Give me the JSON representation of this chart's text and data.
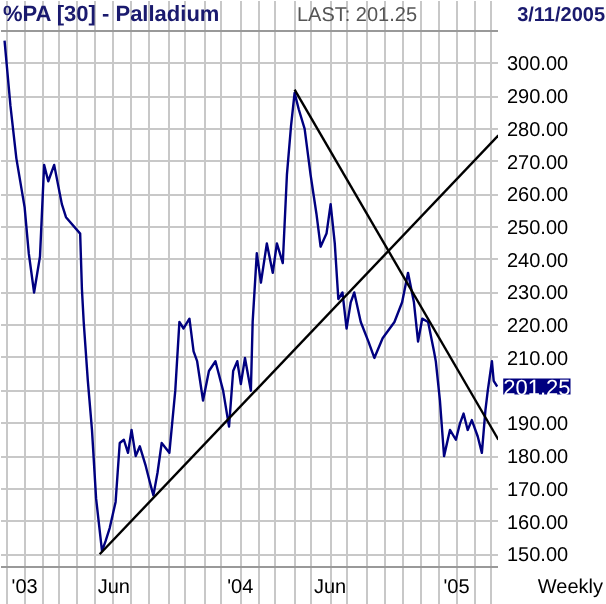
{
  "chart_data": {
    "type": "line",
    "title": "%PA [30] - Palladium",
    "x": [
      "2002-11-28",
      "2002-12-08",
      "2002-12-18",
      "2003-01-01",
      "2003-01-08",
      "2003-01-17",
      "2003-01-27",
      "2003-02-03",
      "2003-02-10",
      "2003-02-20",
      "2003-03-05",
      "2003-03-12",
      "2003-04-05",
      "2003-04-08",
      "2003-04-11",
      "2003-04-18",
      "2003-04-25",
      "2003-05-02",
      "2003-05-12",
      "2003-05-18",
      "2003-05-25",
      "2003-06-04",
      "2003-06-11",
      "2003-06-18",
      "2003-06-25",
      "2003-07-01",
      "2003-07-08",
      "2003-07-15",
      "2003-07-25",
      "2003-08-01",
      "2003-08-07",
      "2003-08-14",
      "2003-08-21",
      "2003-09-03",
      "2003-09-13",
      "2003-09-20",
      "2003-09-27",
      "2003-10-07",
      "2003-10-14",
      "2003-10-20",
      "2003-10-30",
      "2003-11-09",
      "2003-11-20",
      "2003-12-03",
      "2003-12-13",
      "2003-12-20",
      "2003-12-27",
      "2004-01-02",
      "2004-01-09",
      "2004-01-19",
      "2004-01-22",
      "2004-01-29",
      "2004-02-05",
      "2004-02-15",
      "2004-02-25",
      "2004-03-03",
      "2004-03-13",
      "2004-03-20",
      "2004-03-27",
      "2004-04-02",
      "2004-04-09",
      "2004-04-19",
      "2004-04-29",
      "2004-05-09",
      "2004-05-16",
      "2004-05-26",
      "2004-06-02",
      "2004-06-09",
      "2004-06-15",
      "2004-06-22",
      "2004-06-29",
      "2004-07-06",
      "2004-07-12",
      "2004-07-23",
      "2004-08-05",
      "2004-08-15",
      "2004-08-29",
      "2004-09-18",
      "2004-10-01",
      "2004-10-11",
      "2004-10-21",
      "2004-10-28",
      "2004-11-04",
      "2004-11-14",
      "2004-11-24",
      "2004-11-27",
      "2004-12-04",
      "2004-12-11",
      "2004-12-21",
      "2004-12-31",
      "2005-01-07",
      "2005-01-13",
      "2005-01-20",
      "2005-01-27",
      "2005-02-06",
      "2005-02-13",
      "2005-02-19",
      "2005-02-23",
      "2005-03-02",
      "2005-03-05",
      "2005-03-11"
    ],
    "series": [
      {
        "color": "#000080",
        "values": [
          307,
          287,
          271,
          256,
          242,
          230,
          241,
          269,
          264,
          269,
          257,
          253,
          248,
          231,
          221,
          203,
          188,
          167,
          151,
          154,
          158,
          166,
          184,
          185,
          181,
          188,
          180,
          183,
          177,
          172,
          168,
          175,
          184,
          181,
          200,
          221,
          219,
          222,
          212,
          209,
          197,
          206,
          209,
          200,
          189,
          206,
          209,
          202,
          210,
          200,
          221,
          242,
          233,
          245,
          236,
          245,
          239,
          266,
          281,
          291,
          286,
          280,
          266,
          254,
          244,
          248,
          257,
          245,
          228,
          230,
          219,
          227,
          230,
          221,
          215,
          210,
          216,
          221,
          227,
          236,
          227,
          215,
          222,
          221,
          212,
          209,
          197,
          180,
          188,
          185,
          190,
          193,
          188,
          191,
          186,
          181,
          194,
          200,
          209,
          203,
          201.25
        ]
      },
      {
        "type": "line",
        "color": "#000000",
        "x": [
          "2003-05-08",
          "2005-03-13"
        ],
        "values": [
          150,
          278
        ]
      },
      {
        "type": "line",
        "color": "#000000",
        "x": [
          "2004-04-02",
          "2005-03-13"
        ],
        "values": [
          292,
          185
        ]
      }
    ],
    "annotations": [
      "LAST: 201.25",
      "3/11/2005",
      "Weekly",
      {
        "text": "201.25",
        "x": "2005-03-11",
        "y": 201.25
      }
    ],
    "xlim": [
      "2002-11-22",
      "2005-03-14"
    ],
    "xticks": [
      {
        "value": "2002-12-01",
        "label": null
      },
      {
        "value": "2003-01-01",
        "label": "'03"
      },
      {
        "value": "2003-02-01",
        "label": null
      },
      {
        "value": "2003-03-01",
        "label": null
      },
      {
        "value": "2003-04-01",
        "label": null
      },
      {
        "value": "2003-05-01",
        "label": null
      },
      {
        "value": "2003-06-01",
        "label": "Jun"
      },
      {
        "value": "2003-07-01",
        "label": null
      },
      {
        "value": "2003-08-01",
        "label": null
      },
      {
        "value": "2003-09-01",
        "label": null
      },
      {
        "value": "2003-10-01",
        "label": null
      },
      {
        "value": "2003-11-01",
        "label": null
      },
      {
        "value": "2003-12-01",
        "label": null
      },
      {
        "value": "2004-01-01",
        "label": "'04"
      },
      {
        "value": "2004-02-01",
        "label": null
      },
      {
        "value": "2004-03-01",
        "label": null
      },
      {
        "value": "2004-04-01",
        "label": null
      },
      {
        "value": "2004-05-01",
        "label": null
      },
      {
        "value": "2004-06-01",
        "label": "Jun"
      },
      {
        "value": "2004-07-01",
        "label": null
      },
      {
        "value": "2004-08-01",
        "label": null
      },
      {
        "value": "2004-09-01",
        "label": null
      },
      {
        "value": "2004-10-01",
        "label": null
      },
      {
        "value": "2004-11-01",
        "label": null
      },
      {
        "value": "2004-12-01",
        "label": null
      },
      {
        "value": "2005-01-01",
        "label": "'05"
      },
      {
        "value": "2005-02-01",
        "label": null
      },
      {
        "value": "2005-03-01",
        "label": null
      }
    ],
    "ylim": [
      146,
      310
    ],
    "yticks": [
      {
        "value": 150,
        "label": "150.00"
      },
      {
        "value": 160,
        "label": "160.00"
      },
      {
        "value": 170,
        "label": "170.00"
      },
      {
        "value": 180,
        "label": "180.00"
      },
      {
        "value": 190,
        "label": "190.00"
      },
      {
        "value": 200,
        "label": null
      },
      {
        "value": 210,
        "label": "210.00"
      },
      {
        "value": 220,
        "label": "220.00"
      },
      {
        "value": 230,
        "label": "230.00"
      },
      {
        "value": 240,
        "label": "240.00"
      },
      {
        "value": 250,
        "label": "250.00"
      },
      {
        "value": 260,
        "label": "260.00"
      },
      {
        "value": 270,
        "label": "270.00"
      },
      {
        "value": 280,
        "label": "280.00"
      },
      {
        "value": 290,
        "label": "290.00"
      },
      {
        "value": 300,
        "label": "300.00"
      }
    ],
    "grid": true,
    "marker": "none",
    "line_style": "solid"
  }
}
